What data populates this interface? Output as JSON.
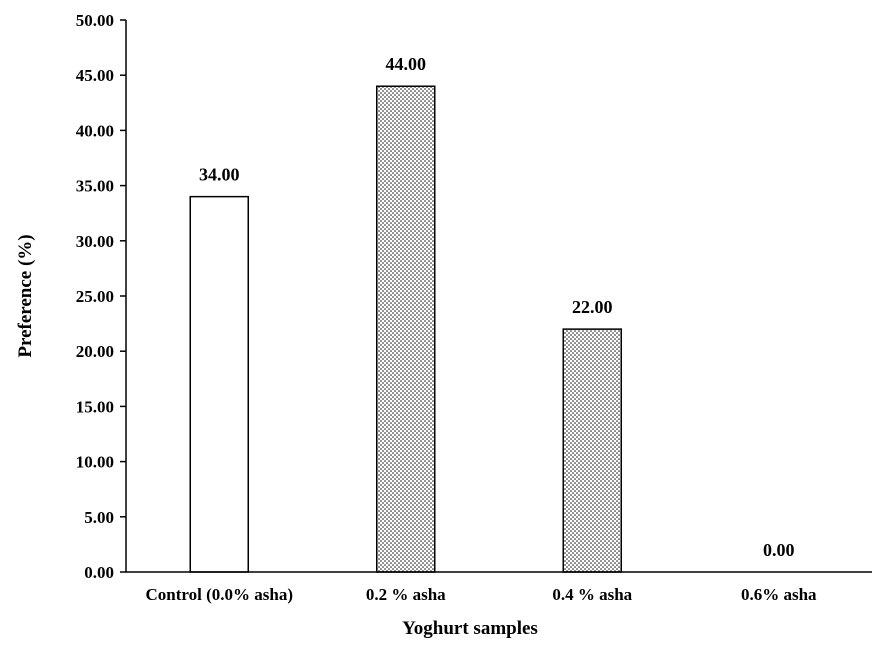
{
  "chart_data": {
    "type": "bar",
    "categories": [
      "Control (0.0% asha)",
      "0.2 % asha",
      "0.4 % asha",
      "0.6% asha"
    ],
    "values": [
      34.0,
      44.0,
      22.0,
      0.0
    ],
    "value_labels": [
      "34.00",
      "44.00",
      "22.00",
      "0.00"
    ],
    "bar_fills": [
      "plain",
      "dotted",
      "dotted",
      "dotted"
    ],
    "title": "",
    "xlabel": "Yoghurt samples",
    "ylabel": "Preference (%)",
    "ylim": [
      0,
      50
    ],
    "yticks": [
      0,
      5,
      10,
      15,
      20,
      25,
      30,
      35,
      40,
      45,
      50
    ],
    "ytick_labels": [
      "0.00",
      "5.00",
      "10.00",
      "15.00",
      "20.00",
      "25.00",
      "30.00",
      "35.00",
      "40.00",
      "45.00",
      "50.00"
    ],
    "grid": false,
    "legend": "none",
    "colors": {
      "bar_fill": "#ffffff",
      "bar_stroke": "#000000",
      "dot": "#000000",
      "axis": "#000000"
    }
  }
}
